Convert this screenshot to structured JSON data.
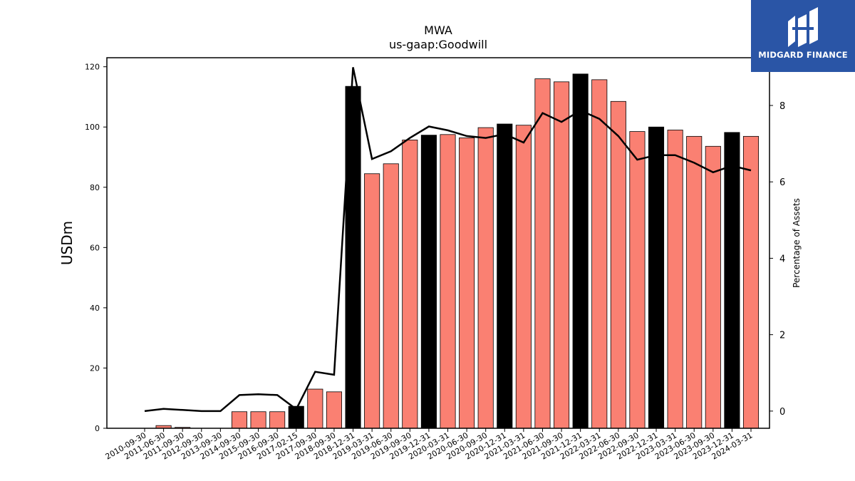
{
  "logo": {
    "text": "MIDGARD FINANCE",
    "icon": "midgard-finance-logo-icon",
    "color": "#2a55a6"
  },
  "chart_data": {
    "type": "bar",
    "title": "MWA",
    "subtitle": "us-gaap:Goodwill",
    "ylabel": "USDm",
    "y2label": "Percentage of Assets",
    "ylim": [
      0,
      123
    ],
    "y2lim": [
      -0.45,
      9.25
    ],
    "yticks": [
      0,
      20,
      40,
      60,
      80,
      100,
      120
    ],
    "y2ticks": [
      0,
      2,
      4,
      6,
      8
    ],
    "grid": false,
    "colors": {
      "bar": "#fa8072",
      "bar_highlight": "#000000",
      "line": "#000000"
    },
    "categories": [
      "2010-09-30",
      "2011-06-30",
      "2011-09-30",
      "2012-09-30",
      "2013-09-30",
      "2014-09-30",
      "2015-09-30",
      "2016-09-30",
      "2017-02-15",
      "2017-09-30",
      "2018-09-30",
      "2018-12-31",
      "2019-03-31",
      "2019-06-30",
      "2019-09-30",
      "2019-12-31",
      "2020-03-31",
      "2020-06-30",
      "2020-09-30",
      "2020-12-31",
      "2021-03-31",
      "2021-06-30",
      "2021-09-30",
      "2021-12-31",
      "2022-03-31",
      "2022-06-30",
      "2022-09-30",
      "2022-12-31",
      "2023-03-31",
      "2023-06-30",
      "2023-09-30",
      "2023-12-31",
      "2024-03-31"
    ],
    "series": [
      {
        "type": "bar",
        "axis": "left",
        "values": [
          0,
          0.9,
          0.3,
          0,
          0,
          5.5,
          5.5,
          5.5,
          7.3,
          13.0,
          12.1,
          113.5,
          84.5,
          87.8,
          95.7,
          97.3,
          97.5,
          96.4,
          99.8,
          101.0,
          100.6,
          116.0,
          115.0,
          117.6,
          115.7,
          108.5,
          98.5,
          100.0,
          99.0,
          96.9,
          93.6,
          98.2,
          96.9
        ],
        "highlight": [
          false,
          false,
          false,
          false,
          false,
          false,
          false,
          false,
          true,
          false,
          false,
          true,
          false,
          false,
          false,
          true,
          false,
          false,
          false,
          true,
          false,
          false,
          false,
          true,
          false,
          false,
          false,
          true,
          false,
          false,
          false,
          true,
          false
        ]
      },
      {
        "type": "line",
        "axis": "right",
        "values": [
          0,
          0.06,
          0.03,
          0,
          0,
          0.42,
          0.44,
          0.42,
          0.05,
          1.03,
          0.95,
          9.0,
          6.6,
          6.8,
          7.15,
          7.45,
          7.35,
          7.2,
          7.15,
          7.25,
          7.03,
          7.8,
          7.57,
          7.87,
          7.65,
          7.2,
          6.58,
          6.7,
          6.7,
          6.5,
          6.25,
          6.42,
          6.3
        ]
      }
    ]
  }
}
